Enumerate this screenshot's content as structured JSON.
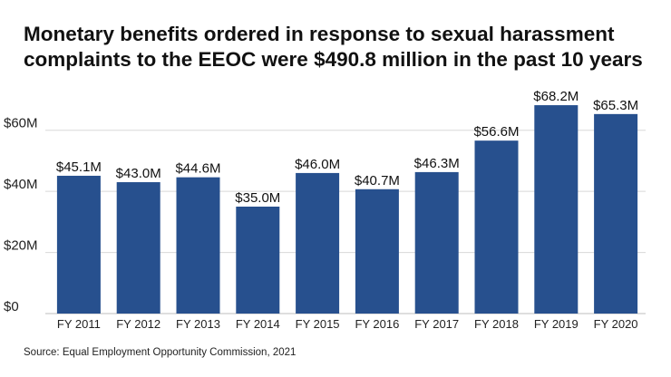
{
  "title_lines": [
    "Monetary benefits ordered in response to sexual harassment",
    "complaints to the EEOC were $490.8 million in the past 10 years"
  ],
  "source": "Source: Equal Employment Opportunity Commission, 2021",
  "colors": {
    "bar": "#27508e",
    "grid": "#d8d8d8",
    "text": "#222222"
  },
  "chart_data": {
    "type": "bar",
    "categories": [
      "FY 2011",
      "FY 2012",
      "FY 2013",
      "FY 2014",
      "FY 2015",
      "FY 2016",
      "FY 2017",
      "FY 2018",
      "FY 2019",
      "FY 2020"
    ],
    "values": [
      45.1,
      43.0,
      44.6,
      35.0,
      46.0,
      40.7,
      46.3,
      56.6,
      68.2,
      65.3
    ],
    "data_labels": [
      "$45.1M",
      "$43.0M",
      "$44.6M",
      "$35.0M",
      "$46.0M",
      "$40.7M",
      "$46.3M",
      "$56.6M",
      "$68.2M",
      "$65.3M"
    ],
    "yticks": [
      0,
      20,
      40,
      60
    ],
    "ytick_labels": [
      "$0",
      "$20M",
      "$40M",
      "$60M"
    ],
    "ylim": [
      0,
      70
    ],
    "grid": true,
    "legend": "none"
  }
}
